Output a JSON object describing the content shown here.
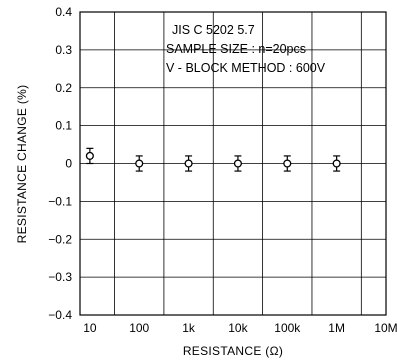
{
  "chart_data": {
    "type": "scatter",
    "xlabel": "RESISTANCE (Ω)",
    "ylabel": "RESISTANCE CHANGE (%)",
    "x_scale": "log",
    "x_tick_labels": [
      "10",
      "100",
      "1k",
      "10k",
      "100k",
      "1M",
      "10M"
    ],
    "x_tick_values": [
      10,
      100,
      1000,
      10000,
      100000,
      1000000,
      10000000
    ],
    "ylim": [
      -0.4,
      0.4
    ],
    "y_tick_labels": [
      "0.4",
      "0.3",
      "0.2",
      "0.1",
      "0",
      "−0.1",
      "−0.2",
      "−0.3",
      "−0.4"
    ],
    "y_tick_values": [
      0.4,
      0.3,
      0.2,
      0.1,
      0,
      -0.1,
      -0.2,
      -0.3,
      -0.4
    ],
    "grid": true,
    "annotations": [
      "JIS C 5202 5.7",
      "SAMPLE SIZE : n=20pcs",
      "V - BLOCK METHOD : 600V"
    ],
    "points": [
      {
        "x": 10,
        "y": 0.02,
        "err_low": 0.0,
        "err_high": 0.04
      },
      {
        "x": 100,
        "y": 0.0,
        "err_low": -0.02,
        "err_high": 0.02
      },
      {
        "x": 1000,
        "y": 0.0,
        "err_low": -0.02,
        "err_high": 0.02
      },
      {
        "x": 10000,
        "y": 0.0,
        "err_low": -0.02,
        "err_high": 0.02
      },
      {
        "x": 100000,
        "y": 0.0,
        "err_low": -0.02,
        "err_high": 0.02
      },
      {
        "x": 1000000,
        "y": 0.0,
        "err_low": -0.02,
        "err_high": 0.02
      }
    ]
  }
}
